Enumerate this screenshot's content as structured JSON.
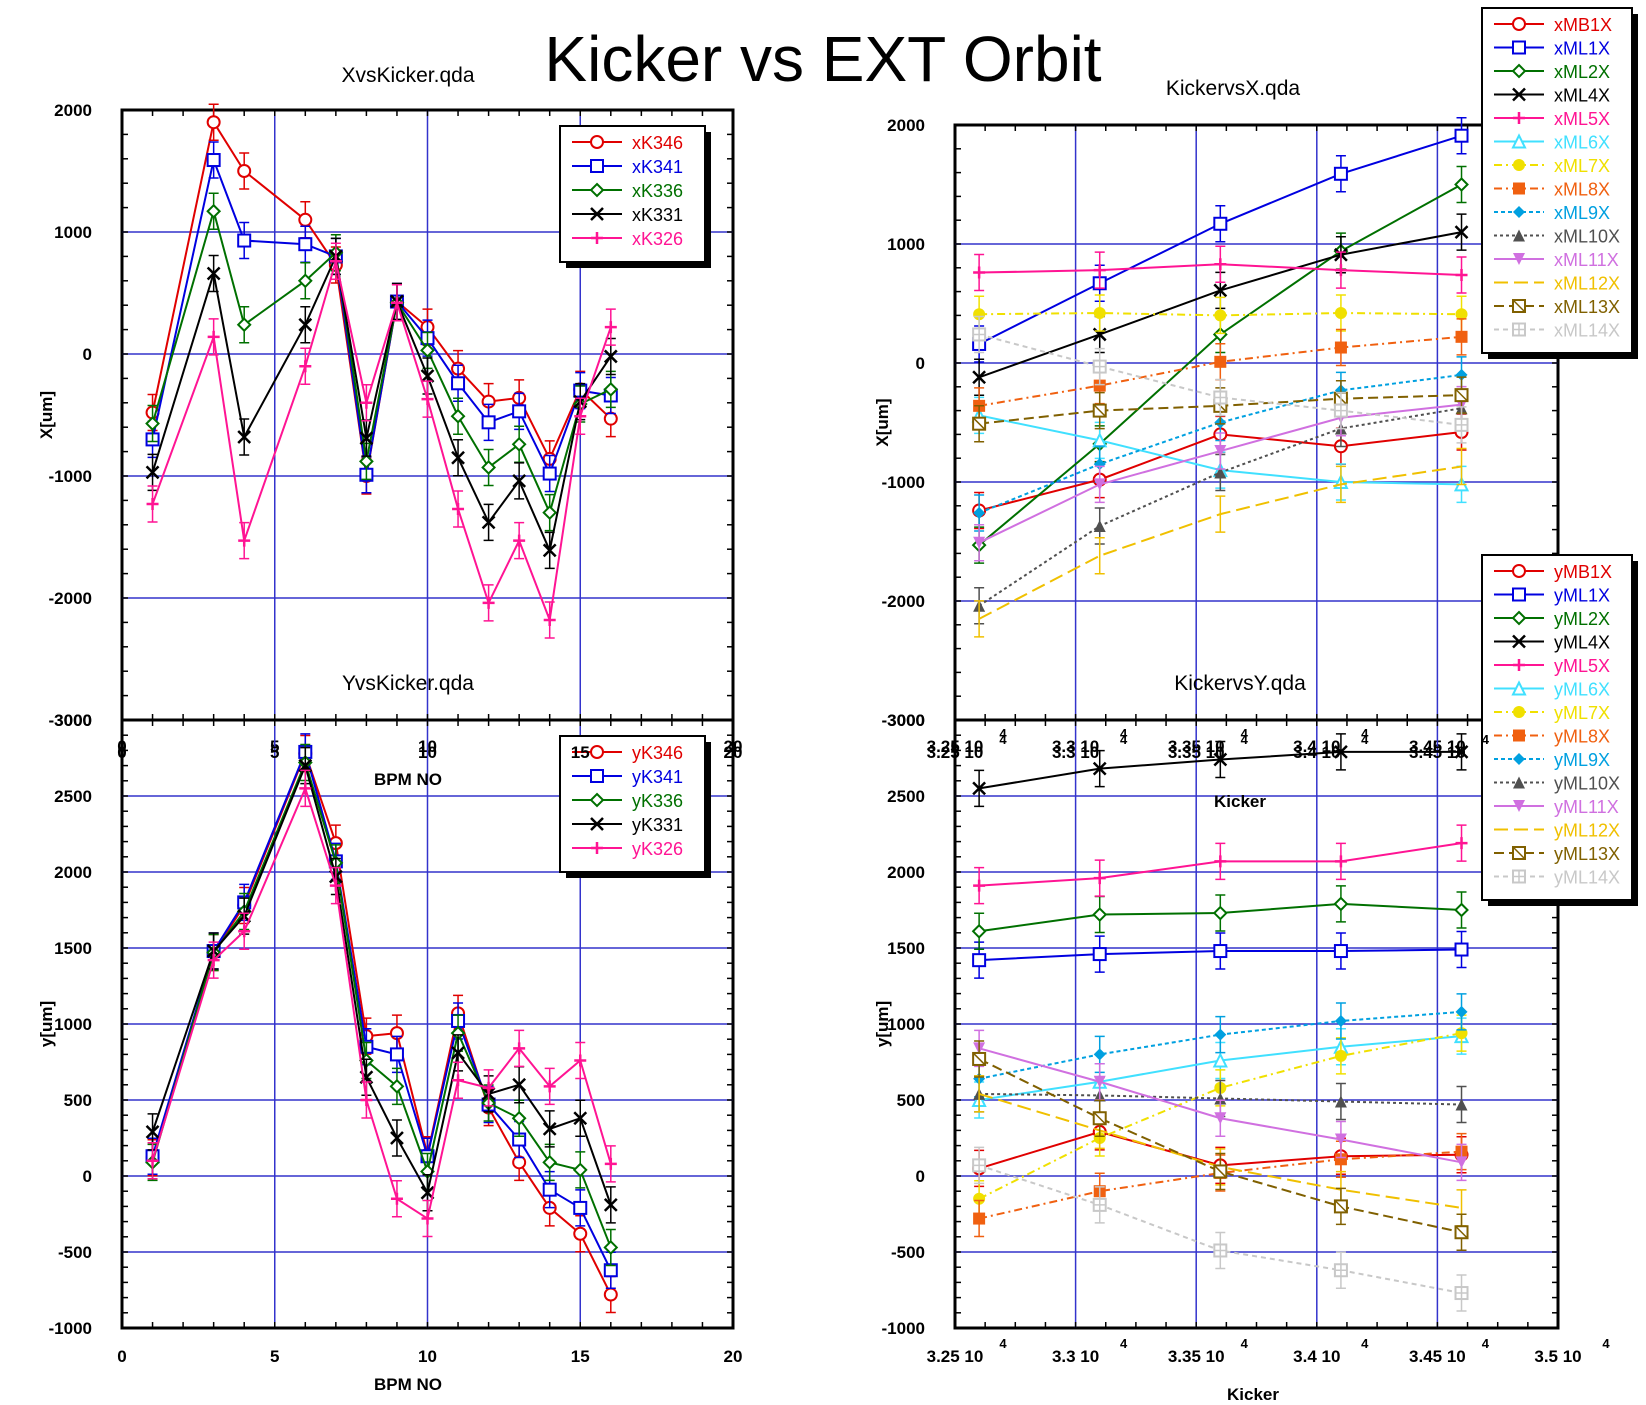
{
  "page": {
    "title": "Kicker vs EXT Orbit"
  },
  "chart_data": [
    {
      "id": "xvskicker",
      "type": "line",
      "title": "XvsKicker.qda",
      "xlabel": "BPM NO",
      "ylabel": "X[um]",
      "xlim": [
        0,
        20
      ],
      "ylim": [
        -3000,
        2000
      ],
      "xticks": [
        0,
        5,
        10,
        15,
        20
      ],
      "yticks": [
        -3000,
        -2000,
        -1000,
        0,
        1000,
        2000
      ],
      "xtick_labels": [
        "0",
        "5",
        "10",
        "15",
        "20"
      ],
      "ytick_labels": [
        "-3000",
        "-2000",
        "-1000",
        "0",
        "1000",
        "2000"
      ],
      "grid": true,
      "legend_position": "top-right",
      "series": [
        {
          "name": "xK346",
          "color": "#e00000",
          "marker": "circle",
          "x": [
            1,
            3,
            4,
            6,
            7,
            8,
            9,
            10,
            11,
            12,
            13,
            14,
            15,
            16
          ],
          "y": [
            -480,
            1900,
            1500,
            1100,
            730,
            -1000,
            430,
            220,
            -120,
            -390,
            -360,
            -860,
            -290,
            -530
          ]
        },
        {
          "name": "xK341",
          "color": "#0000e0",
          "marker": "square",
          "x": [
            1,
            3,
            4,
            6,
            7,
            8,
            9,
            10,
            11,
            12,
            13,
            14,
            15,
            16
          ],
          "y": [
            -700,
            1590,
            930,
            900,
            800,
            -990,
            430,
            130,
            -240,
            -560,
            -470,
            -980,
            -300,
            -340
          ]
        },
        {
          "name": "xK336",
          "color": "#007000",
          "marker": "diamond",
          "x": [
            1,
            3,
            4,
            6,
            7,
            8,
            9,
            10,
            11,
            12,
            13,
            14,
            15,
            16
          ],
          "y": [
            -570,
            1170,
            240,
            600,
            830,
            -880,
            420,
            30,
            -510,
            -930,
            -740,
            -1300,
            -410,
            -290
          ]
        },
        {
          "name": "xK331",
          "color": "#000000",
          "marker": "x",
          "x": [
            1,
            3,
            4,
            6,
            7,
            8,
            9,
            10,
            11,
            12,
            13,
            14,
            15,
            16
          ],
          "y": [
            -970,
            660,
            -680,
            240,
            800,
            -690,
            430,
            -180,
            -850,
            -1380,
            -1040,
            -1610,
            -390,
            -20
          ]
        },
        {
          "name": "xK326",
          "color": "#ff1493",
          "marker": "plus",
          "x": [
            1,
            3,
            4,
            6,
            7,
            8,
            9,
            10,
            11,
            12,
            13,
            14,
            15,
            16
          ],
          "y": [
            -1230,
            140,
            -1530,
            -100,
            760,
            -400,
            420,
            -370,
            -1270,
            -2040,
            -1530,
            -2180,
            -510,
            220
          ]
        }
      ]
    },
    {
      "id": "yvskicker",
      "type": "line",
      "title": "YvsKicker.qda",
      "xlabel": "BPM NO",
      "ylabel": "y[um]",
      "xlim": [
        0,
        20
      ],
      "ylim": [
        -1000,
        3000
      ],
      "xticks": [
        0,
        5,
        10,
        15,
        20
      ],
      "yticks": [
        -1000,
        -500,
        0,
        500,
        1000,
        1500,
        2000,
        2500,
        3000
      ],
      "xtick_labels": [
        "0",
        "5",
        "10",
        "15",
        "20"
      ],
      "ytick_labels": [
        "-1000",
        "-500",
        "0",
        "500",
        "1000",
        "1500",
        "2000",
        "2500",
        "3000"
      ],
      "grid": true,
      "legend_position": "top-right",
      "series": [
        {
          "name": "yK346",
          "color": "#e00000",
          "marker": "circle",
          "x": [
            1,
            3,
            4,
            6,
            7,
            8,
            9,
            10,
            11,
            12,
            13,
            14,
            15,
            16
          ],
          "y": [
            120,
            1470,
            1780,
            2780,
            2190,
            920,
            940,
            140,
            1070,
            450,
            90,
            -210,
            -380,
            -780
          ]
        },
        {
          "name": "yK341",
          "color": "#0000e0",
          "marker": "square",
          "x": [
            1,
            3,
            4,
            6,
            7,
            8,
            9,
            10,
            11,
            12,
            13,
            14,
            15,
            16
          ],
          "y": [
            130,
            1480,
            1800,
            2790,
            2070,
            850,
            800,
            130,
            1020,
            470,
            240,
            -90,
            -210,
            -620
          ]
        },
        {
          "name": "yK336",
          "color": "#007000",
          "marker": "diamond",
          "x": [
            1,
            3,
            4,
            6,
            7,
            8,
            9,
            10,
            11,
            12,
            13,
            14,
            15,
            16
          ],
          "y": [
            90,
            1470,
            1740,
            2720,
            2060,
            760,
            590,
            30,
            940,
            480,
            380,
            90,
            40,
            -470
          ]
        },
        {
          "name": "yK331",
          "color": "#000000",
          "marker": "x",
          "x": [
            1,
            3,
            4,
            6,
            7,
            8,
            9,
            10,
            11,
            12,
            13,
            14,
            15,
            16
          ],
          "y": [
            290,
            1480,
            1710,
            2700,
            1970,
            650,
            250,
            -110,
            810,
            540,
            600,
            310,
            380,
            -190
          ]
        },
        {
          "name": "yK326",
          "color": "#ff1493",
          "marker": "plus",
          "x": [
            1,
            3,
            4,
            6,
            7,
            8,
            9,
            10,
            11,
            12,
            13,
            14,
            15,
            16
          ],
          "y": [
            100,
            1420,
            1610,
            2550,
            1910,
            500,
            -150,
            -280,
            630,
            580,
            840,
            590,
            760,
            80
          ]
        }
      ]
    },
    {
      "id": "kickervsx",
      "type": "line",
      "title": "KickervsX.qda",
      "xlabel": "Kicker",
      "ylabel": "X[um]",
      "xlim": [
        32500,
        35000
      ],
      "ylim": [
        -3000,
        2000
      ],
      "xticks": [
        32500,
        33000,
        33500,
        34000,
        34500
      ],
      "yticks": [
        -3000,
        -2000,
        -1000,
        0,
        1000,
        2000
      ],
      "xtick_labels": [
        "3.25 10",
        "3.3 10",
        "3.35 10",
        "3.4 10",
        "3.45 10"
      ],
      "xtick_exponent": "4",
      "ytick_labels": [
        "-3000",
        "-2000",
        "-1000",
        "0",
        "1000",
        "2000"
      ],
      "grid": true,
      "legend_position": "top-right",
      "x_values": [
        32600,
        33100,
        33600,
        34100,
        34600
      ],
      "series": [
        {
          "name": "xMB1X",
          "color": "#e00000",
          "marker": "circle",
          "dash": "",
          "y": [
            -1240,
            -980,
            -600,
            -700,
            -580
          ]
        },
        {
          "name": "xML1X",
          "color": "#0000e0",
          "marker": "square",
          "dash": "",
          "y": [
            160,
            670,
            1170,
            1590,
            1910
          ]
        },
        {
          "name": "xML2X",
          "color": "#007000",
          "marker": "diamond",
          "dash": "",
          "y": [
            -1530,
            -680,
            240,
            940,
            1500
          ]
        },
        {
          "name": "xML4X",
          "color": "#000000",
          "marker": "x",
          "dash": "",
          "y": [
            -120,
            240,
            610,
            910,
            1100
          ]
        },
        {
          "name": "xML5X",
          "color": "#ff1493",
          "marker": "plus",
          "dash": "",
          "y": [
            760,
            780,
            830,
            780,
            740
          ]
        },
        {
          "name": "xML6X",
          "color": "#40e0ff",
          "marker": "triangle",
          "dash": "",
          "y": [
            -440,
            -650,
            -900,
            -1000,
            -1020
          ]
        },
        {
          "name": "xML7X",
          "color": "#f0e000",
          "marker": "dot",
          "dash": "8,4,2,4",
          "y": [
            410,
            420,
            400,
            420,
            410
          ]
        },
        {
          "name": "xML8X",
          "color": "#f06010",
          "marker": "fsquare",
          "dash": "8,4,2,4",
          "y": [
            -360,
            -190,
            10,
            130,
            220
          ]
        },
        {
          "name": "xML9X",
          "color": "#00a0e0",
          "marker": "fdiamond",
          "dash": "4,3",
          "y": [
            -1260,
            -850,
            -500,
            -230,
            -100
          ]
        },
        {
          "name": "xML10X",
          "color": "#505050",
          "marker": "ftriangle",
          "dash": "3,3",
          "y": [
            -2040,
            -1370,
            -920,
            -550,
            -380
          ]
        },
        {
          "name": "xML11X",
          "color": "#d070e0",
          "marker": "ftriangledown",
          "dash": "",
          "y": [
            -1510,
            -1020,
            -740,
            -460,
            -350
          ]
        },
        {
          "name": "xML12X",
          "color": "#f0c000",
          "marker": "none",
          "dash": "14,6",
          "y": [
            -2150,
            -1620,
            -1270,
            -1020,
            -870
          ]
        },
        {
          "name": "xML13X",
          "color": "#806000",
          "marker": "boxx",
          "dash": "10,5",
          "y": [
            -510,
            -400,
            -360,
            -300,
            -270
          ]
        },
        {
          "name": "xML14X",
          "color": "#c8c8c8",
          "marker": "boxplus",
          "dash": "5,4",
          "y": [
            240,
            -30,
            -290,
            -400,
            -520
          ]
        }
      ]
    },
    {
      "id": "kickervsy",
      "type": "line",
      "title": "KickervsY.qda",
      "xlabel": "Kicker",
      "ylabel": "y[um]",
      "xlim": [
        32500,
        35000
      ],
      "ylim": [
        -1000,
        3000
      ],
      "xticks": [
        32500,
        33000,
        33500,
        34000,
        34500,
        35000
      ],
      "yticks": [
        -1000,
        -500,
        0,
        500,
        1000,
        1500,
        2000,
        2500,
        3000
      ],
      "xtick_labels": [
        "3.25 10",
        "3.3 10",
        "3.35 10",
        "3.4 10",
        "3.45 10",
        "3.5 10"
      ],
      "xtick_exponent": "4",
      "ytick_labels": [
        "-1000",
        "-500",
        "0",
        "500",
        "1000",
        "1500",
        "2000",
        "2500",
        "3000"
      ],
      "grid": true,
      "legend_position": "top-right",
      "x_values": [
        32600,
        33100,
        33600,
        34100,
        34600
      ],
      "series": [
        {
          "name": "yMB1X",
          "color": "#e00000",
          "marker": "circle",
          "dash": "",
          "y": [
            50,
            290,
            70,
            130,
            140
          ]
        },
        {
          "name": "yML1X",
          "color": "#0000e0",
          "marker": "square",
          "dash": "",
          "y": [
            1420,
            1460,
            1480,
            1480,
            1490
          ]
        },
        {
          "name": "yML2X",
          "color": "#007000",
          "marker": "diamond",
          "dash": "",
          "y": [
            1610,
            1720,
            1730,
            1790,
            1750
          ]
        },
        {
          "name": "yML4X",
          "color": "#000000",
          "marker": "x",
          "dash": "",
          "y": [
            2550,
            2680,
            2740,
            2790,
            2790
          ]
        },
        {
          "name": "yML5X",
          "color": "#ff1493",
          "marker": "plus",
          "dash": "",
          "y": [
            1910,
            1960,
            2070,
            2070,
            2190
          ]
        },
        {
          "name": "yML6X",
          "color": "#40e0ff",
          "marker": "triangle",
          "dash": "",
          "y": [
            500,
            620,
            760,
            850,
            920
          ]
        },
        {
          "name": "yML7X",
          "color": "#f0e000",
          "marker": "dot",
          "dash": "8,4,2,4",
          "y": [
            -150,
            250,
            580,
            790,
            940
          ]
        },
        {
          "name": "yML8X",
          "color": "#f06010",
          "marker": "fsquare",
          "dash": "8,4,2,4",
          "y": [
            -280,
            -100,
            20,
            110,
            160
          ]
        },
        {
          "name": "yML9X",
          "color": "#00a0e0",
          "marker": "fdiamond",
          "dash": "4,3",
          "y": [
            640,
            800,
            930,
            1020,
            1080
          ]
        },
        {
          "name": "yML10X",
          "color": "#505050",
          "marker": "ftriangle",
          "dash": "3,3",
          "y": [
            540,
            530,
            510,
            490,
            470
          ]
        },
        {
          "name": "yML11X",
          "color": "#d070e0",
          "marker": "ftriangledown",
          "dash": "",
          "y": [
            840,
            620,
            380,
            240,
            90
          ]
        },
        {
          "name": "yML12X",
          "color": "#f0c000",
          "marker": "none",
          "dash": "14,6",
          "y": [
            540,
            300,
            60,
            -90,
            -210
          ]
        },
        {
          "name": "yML13X",
          "color": "#806000",
          "marker": "boxx",
          "dash": "10,5",
          "y": [
            770,
            380,
            30,
            -200,
            -370
          ]
        },
        {
          "name": "yML14X",
          "color": "#c8c8c8",
          "marker": "boxplus",
          "dash": "5,4",
          "y": [
            70,
            -190,
            -490,
            -620,
            -770
          ]
        }
      ]
    }
  ]
}
